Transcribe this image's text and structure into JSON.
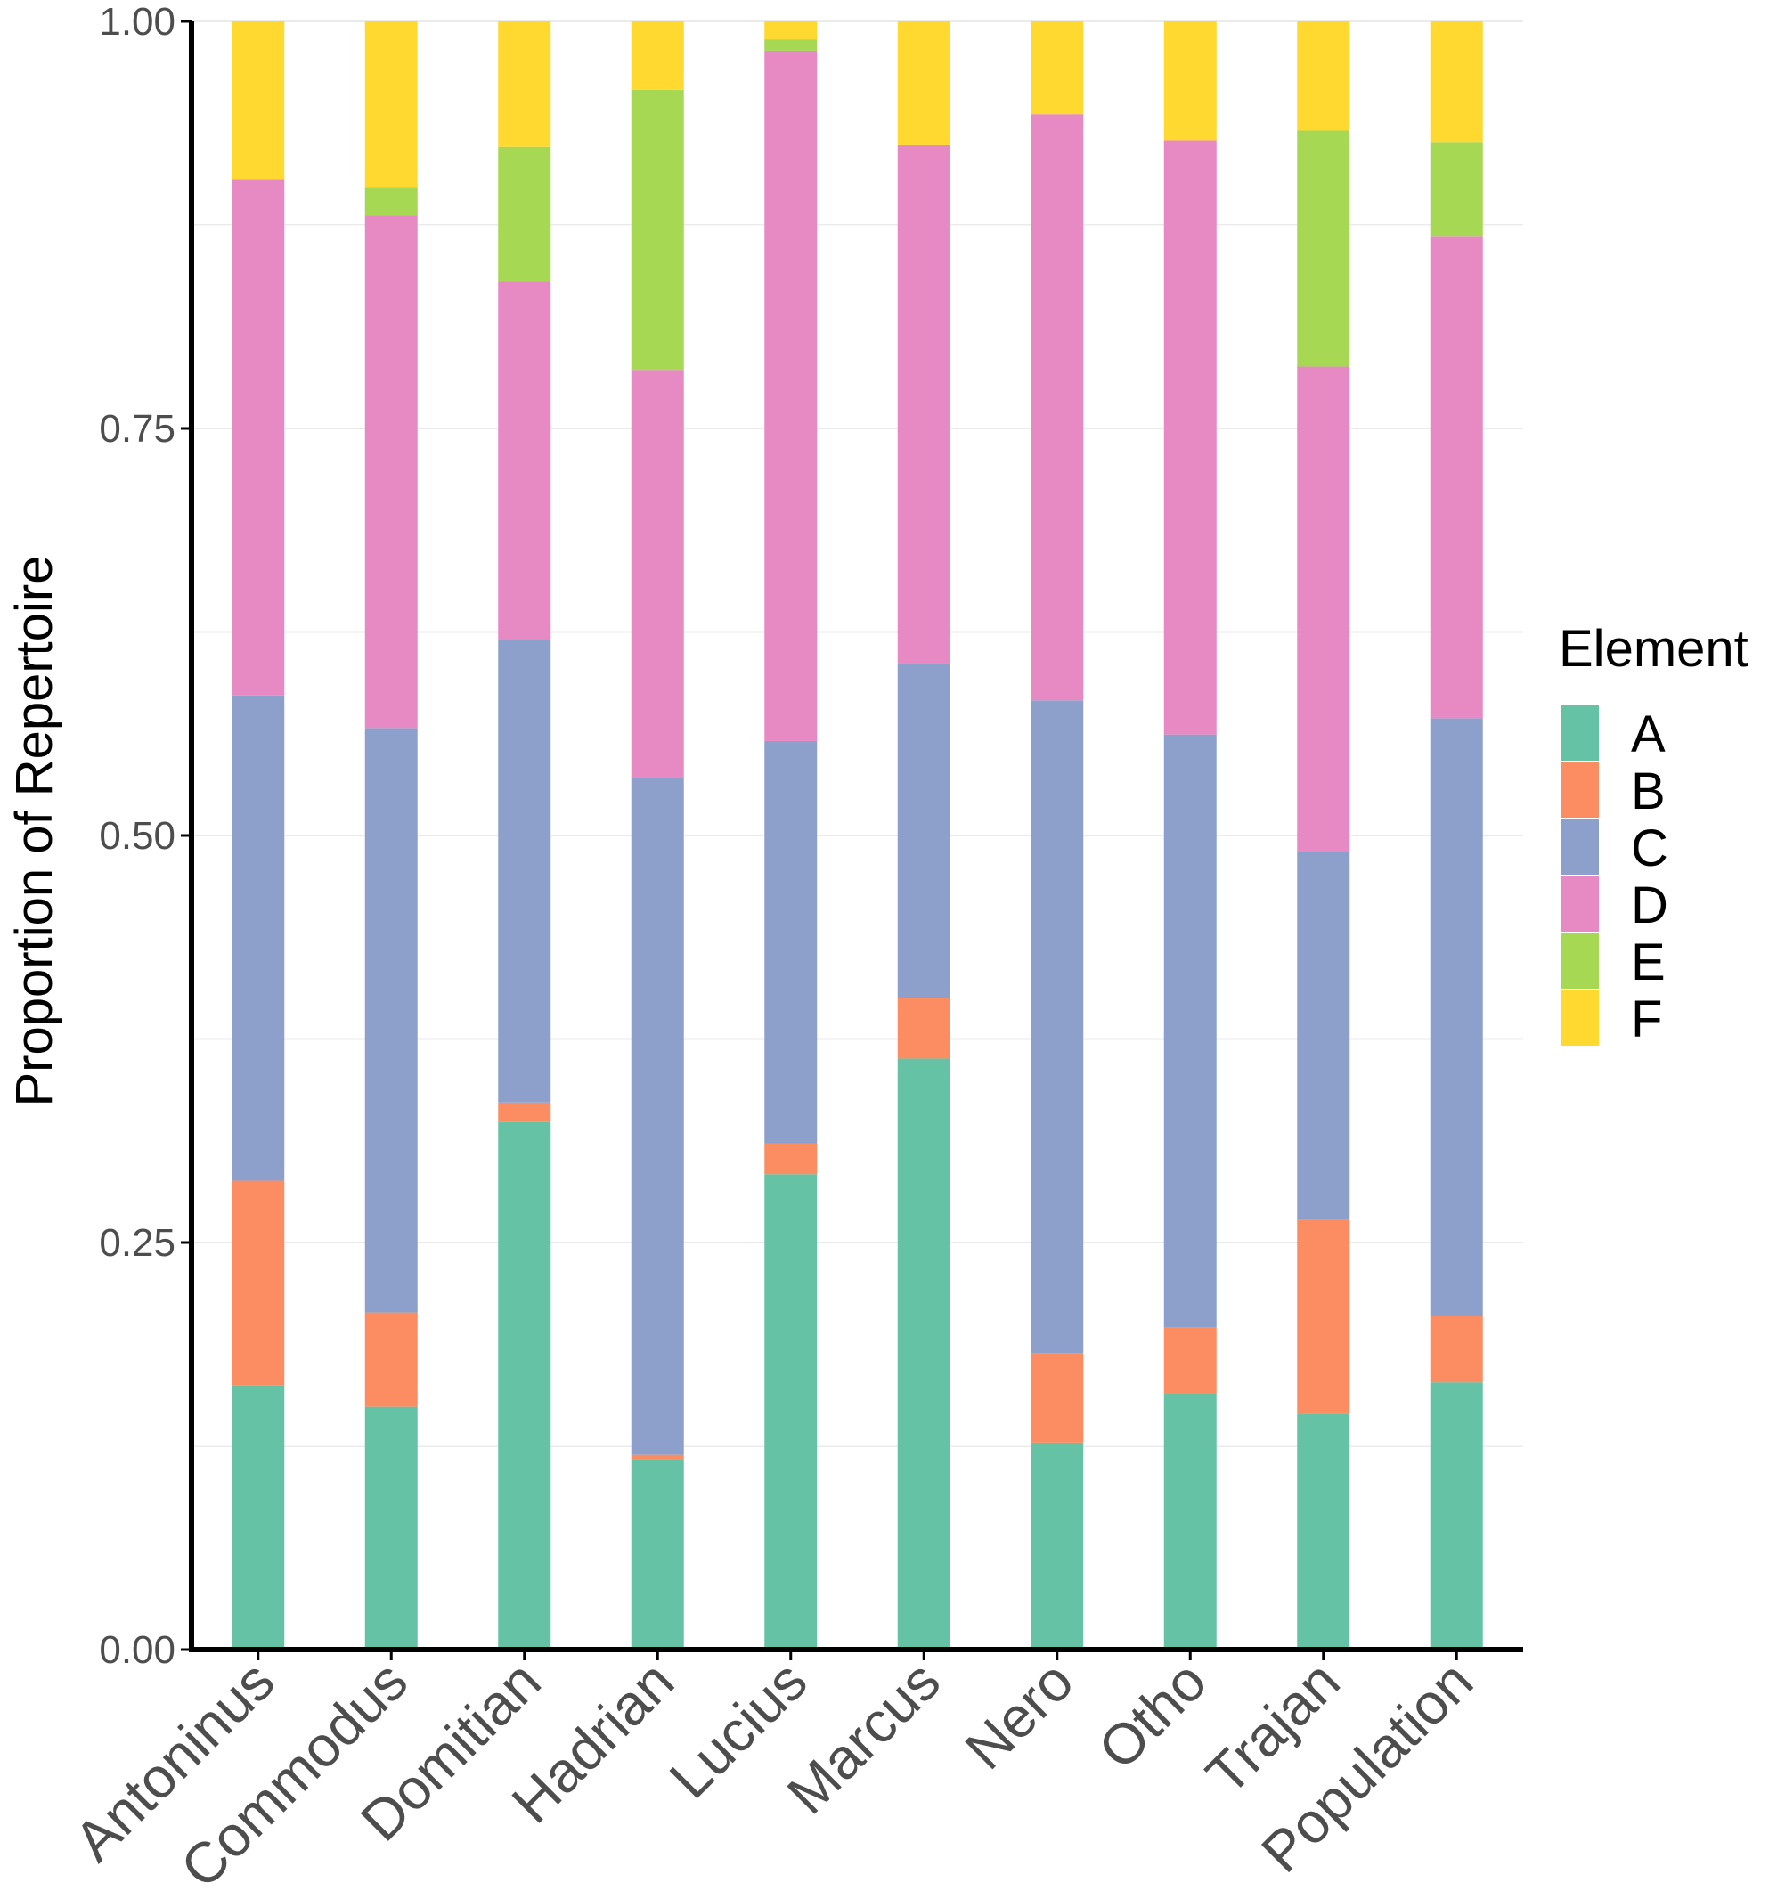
{
  "chart_data": {
    "type": "bar",
    "stacked": true,
    "title": "",
    "xlabel": "",
    "ylabel": "Proportion of Repertoire",
    "ylim": [
      0,
      1
    ],
    "yticks": [
      "0.00",
      "0.25",
      "0.50",
      "0.75",
      "1.00"
    ],
    "ytick_values": [
      0,
      0.25,
      0.5,
      0.75,
      1
    ],
    "categories": [
      "Antoninus",
      "Commodus",
      "Domitian",
      "Hadrian",
      "Lucius",
      "Marcus",
      "Nero",
      "Otho",
      "Trajan",
      "Population"
    ],
    "legend": {
      "title": "Element",
      "placement": "right"
    },
    "series": [
      {
        "name": "A",
        "color": "#66c2a5",
        "values": [
          0.162,
          0.149,
          0.324,
          0.117,
          0.292,
          0.363,
          0.127,
          0.157,
          0.145,
          0.164
        ]
      },
      {
        "name": "B",
        "color": "#fc8d62",
        "values": [
          0.126,
          0.058,
          0.012,
          0.003,
          0.019,
          0.037,
          0.055,
          0.041,
          0.119,
          0.041
        ]
      },
      {
        "name": "C",
        "color": "#8da0cb",
        "values": [
          0.298,
          0.359,
          0.284,
          0.416,
          0.247,
          0.206,
          0.401,
          0.364,
          0.226,
          0.367
        ]
      },
      {
        "name": "D",
        "color": "#e78ac3",
        "values": [
          0.317,
          0.315,
          0.22,
          0.25,
          0.424,
          0.318,
          0.36,
          0.365,
          0.298,
          0.296
        ]
      },
      {
        "name": "E",
        "color": "#a6d854",
        "values": [
          0.0,
          0.017,
          0.083,
          0.172,
          0.007,
          0.0,
          0.0,
          0.0,
          0.145,
          0.058
        ]
      },
      {
        "name": "F",
        "color": "#ffd92f",
        "values": [
          0.097,
          0.102,
          0.077,
          0.042,
          0.011,
          0.076,
          0.057,
          0.073,
          0.067,
          0.074
        ]
      }
    ]
  }
}
